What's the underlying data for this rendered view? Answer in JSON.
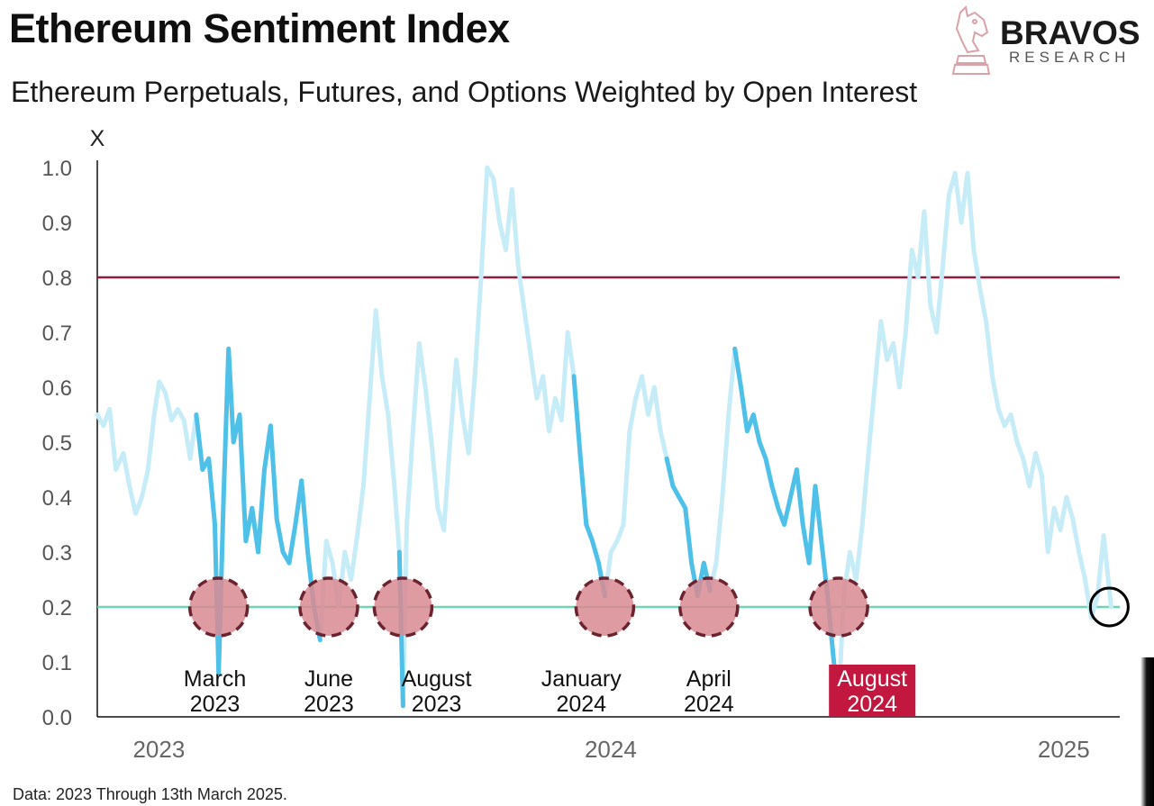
{
  "header": {
    "title": "Ethereum Sentiment Index",
    "subtitle": "Ethereum Perpetuals, Futures, and Options Weighted by Open Interest"
  },
  "logo": {
    "name": "BRAVOS",
    "sub": "RESEARCH"
  },
  "footnote": "Data: 2023 Through 13th March 2025.",
  "chart_data": {
    "type": "line",
    "title": "Ethereum Sentiment Index",
    "subtitle": "Ethereum Perpetuals, Futures, and Options Weighted by Open Interest",
    "ylabel": "X",
    "xlabel": "",
    "ylim": [
      0,
      1.0
    ],
    "y_ticks": [
      "0.0",
      "0.1",
      "0.2",
      "0.3",
      "0.4",
      "0.5",
      "0.6",
      "0.7",
      "0.8",
      "0.9",
      "1.0"
    ],
    "x_ticks": [
      {
        "label": "2023",
        "date": "2023-01-01"
      },
      {
        "label": "2024",
        "date": "2024-01-01"
      },
      {
        "label": "2025",
        "date": "2025-01-01"
      }
    ],
    "xlim": [
      "2022-12-15",
      "2025-03-20"
    ],
    "colors": {
      "series": "#c6ecf8",
      "highlight": "#4fc1e9",
      "upper_line": "#8b1e3f",
      "lower_line": "#6fd6b5",
      "marker_fill": "#d98a92",
      "marker_stroke": "#6b2330",
      "label_badge": "#c2183f"
    },
    "series": [
      {
        "values": [
          [
            "2022-12-15",
            0.55
          ],
          [
            "2022-12-20",
            0.53
          ],
          [
            "2022-12-25",
            0.56
          ],
          [
            "2022-12-30",
            0.45
          ],
          [
            "2023-01-05",
            0.48
          ],
          [
            "2023-01-10",
            0.42
          ],
          [
            "2023-01-15",
            0.37
          ],
          [
            "2023-01-20",
            0.4
          ],
          [
            "2023-01-25",
            0.45
          ],
          [
            "2023-01-30",
            0.55
          ],
          [
            "2023-02-03",
            0.61
          ],
          [
            "2023-02-08",
            0.59
          ],
          [
            "2023-02-13",
            0.54
          ],
          [
            "2023-02-18",
            0.56
          ],
          [
            "2023-02-23",
            0.54
          ],
          [
            "2023-02-28",
            0.47
          ],
          [
            "2023-03-05",
            0.55
          ],
          [
            "2023-03-10",
            0.45
          ],
          [
            "2023-03-15",
            0.47
          ],
          [
            "2023-03-20",
            0.35
          ],
          [
            "2023-03-23",
            0.08
          ],
          [
            "2023-03-27",
            0.4
          ],
          [
            "2023-03-31",
            0.67
          ],
          [
            "2023-04-04",
            0.5
          ],
          [
            "2023-04-09",
            0.55
          ],
          [
            "2023-04-14",
            0.32
          ],
          [
            "2023-04-19",
            0.38
          ],
          [
            "2023-04-24",
            0.3
          ],
          [
            "2023-04-29",
            0.45
          ],
          [
            "2023-05-04",
            0.53
          ],
          [
            "2023-05-09",
            0.36
          ],
          [
            "2023-05-14",
            0.3
          ],
          [
            "2023-05-19",
            0.28
          ],
          [
            "2023-05-24",
            0.35
          ],
          [
            "2023-05-29",
            0.43
          ],
          [
            "2023-06-03",
            0.3
          ],
          [
            "2023-06-08",
            0.2
          ],
          [
            "2023-06-13",
            0.14
          ],
          [
            "2023-06-18",
            0.32
          ],
          [
            "2023-06-23",
            0.28
          ],
          [
            "2023-06-28",
            0.2
          ],
          [
            "2023-07-03",
            0.3
          ],
          [
            "2023-07-08",
            0.25
          ],
          [
            "2023-07-13",
            0.33
          ],
          [
            "2023-07-18",
            0.42
          ],
          [
            "2023-07-23",
            0.58
          ],
          [
            "2023-07-28",
            0.74
          ],
          [
            "2023-08-02",
            0.62
          ],
          [
            "2023-08-07",
            0.55
          ],
          [
            "2023-08-12",
            0.42
          ],
          [
            "2023-08-16",
            0.3
          ],
          [
            "2023-08-19",
            0.02
          ],
          [
            "2023-08-22",
            0.35
          ],
          [
            "2023-08-27",
            0.52
          ],
          [
            "2023-09-01",
            0.68
          ],
          [
            "2023-09-06",
            0.6
          ],
          [
            "2023-09-11",
            0.5
          ],
          [
            "2023-09-16",
            0.38
          ],
          [
            "2023-09-21",
            0.34
          ],
          [
            "2023-09-26",
            0.5
          ],
          [
            "2023-10-01",
            0.65
          ],
          [
            "2023-10-06",
            0.55
          ],
          [
            "2023-10-11",
            0.48
          ],
          [
            "2023-10-16",
            0.62
          ],
          [
            "2023-10-21",
            0.8
          ],
          [
            "2023-10-26",
            1.0
          ],
          [
            "2023-10-31",
            0.98
          ],
          [
            "2023-11-05",
            0.9
          ],
          [
            "2023-11-10",
            0.85
          ],
          [
            "2023-11-15",
            0.96
          ],
          [
            "2023-11-20",
            0.82
          ],
          [
            "2023-11-25",
            0.74
          ],
          [
            "2023-11-30",
            0.66
          ],
          [
            "2023-12-05",
            0.58
          ],
          [
            "2023-12-10",
            0.62
          ],
          [
            "2023-12-15",
            0.52
          ],
          [
            "2023-12-20",
            0.58
          ],
          [
            "2023-12-25",
            0.54
          ],
          [
            "2023-12-30",
            0.7
          ],
          [
            "2024-01-04",
            0.62
          ],
          [
            "2024-01-09",
            0.48
          ],
          [
            "2024-01-14",
            0.35
          ],
          [
            "2024-01-19",
            0.32
          ],
          [
            "2024-01-24",
            0.28
          ],
          [
            "2024-01-29",
            0.22
          ],
          [
            "2024-02-03",
            0.3
          ],
          [
            "2024-02-08",
            0.32
          ],
          [
            "2024-02-13",
            0.35
          ],
          [
            "2024-02-18",
            0.52
          ],
          [
            "2024-02-23",
            0.58
          ],
          [
            "2024-02-28",
            0.62
          ],
          [
            "2024-03-04",
            0.55
          ],
          [
            "2024-03-09",
            0.6
          ],
          [
            "2024-03-14",
            0.52
          ],
          [
            "2024-03-19",
            0.47
          ],
          [
            "2024-03-24",
            0.42
          ],
          [
            "2024-03-29",
            0.4
          ],
          [
            "2024-04-03",
            0.38
          ],
          [
            "2024-04-08",
            0.28
          ],
          [
            "2024-04-13",
            0.22
          ],
          [
            "2024-04-18",
            0.28
          ],
          [
            "2024-04-23",
            0.23
          ],
          [
            "2024-04-28",
            0.28
          ],
          [
            "2024-05-03",
            0.4
          ],
          [
            "2024-05-08",
            0.55
          ],
          [
            "2024-05-13",
            0.67
          ],
          [
            "2024-05-18",
            0.6
          ],
          [
            "2024-05-23",
            0.52
          ],
          [
            "2024-05-28",
            0.55
          ],
          [
            "2024-06-02",
            0.5
          ],
          [
            "2024-06-07",
            0.47
          ],
          [
            "2024-06-12",
            0.42
          ],
          [
            "2024-06-17",
            0.38
          ],
          [
            "2024-06-22",
            0.35
          ],
          [
            "2024-06-27",
            0.4
          ],
          [
            "2024-07-02",
            0.45
          ],
          [
            "2024-07-07",
            0.35
          ],
          [
            "2024-07-12",
            0.28
          ],
          [
            "2024-07-17",
            0.42
          ],
          [
            "2024-07-22",
            0.32
          ],
          [
            "2024-07-27",
            0.22
          ],
          [
            "2024-08-01",
            0.1
          ],
          [
            "2024-08-05",
            0.03
          ],
          [
            "2024-08-09",
            0.22
          ],
          [
            "2024-08-14",
            0.3
          ],
          [
            "2024-08-19",
            0.25
          ],
          [
            "2024-08-24",
            0.35
          ],
          [
            "2024-08-29",
            0.48
          ],
          [
            "2024-09-03",
            0.6
          ],
          [
            "2024-09-08",
            0.72
          ],
          [
            "2024-09-13",
            0.65
          ],
          [
            "2024-09-18",
            0.68
          ],
          [
            "2024-09-23",
            0.6
          ],
          [
            "2024-09-28",
            0.7
          ],
          [
            "2024-10-03",
            0.85
          ],
          [
            "2024-10-08",
            0.8
          ],
          [
            "2024-10-13",
            0.92
          ],
          [
            "2024-10-18",
            0.75
          ],
          [
            "2024-10-23",
            0.7
          ],
          [
            "2024-10-28",
            0.82
          ],
          [
            "2024-11-02",
            0.95
          ],
          [
            "2024-11-07",
            0.99
          ],
          [
            "2024-11-12",
            0.9
          ],
          [
            "2024-11-17",
            0.99
          ],
          [
            "2024-11-22",
            0.85
          ],
          [
            "2024-11-27",
            0.78
          ],
          [
            "2024-12-02",
            0.72
          ],
          [
            "2024-12-07",
            0.62
          ],
          [
            "2024-12-12",
            0.56
          ],
          [
            "2024-12-17",
            0.53
          ],
          [
            "2024-12-22",
            0.55
          ],
          [
            "2024-12-27",
            0.5
          ],
          [
            "2025-01-01",
            0.47
          ],
          [
            "2025-01-06",
            0.42
          ],
          [
            "2025-01-11",
            0.48
          ],
          [
            "2025-01-16",
            0.44
          ],
          [
            "2025-01-21",
            0.3
          ],
          [
            "2025-01-26",
            0.38
          ],
          [
            "2025-01-31",
            0.34
          ],
          [
            "2025-02-05",
            0.4
          ],
          [
            "2025-02-10",
            0.36
          ],
          [
            "2025-02-15",
            0.3
          ],
          [
            "2025-02-20",
            0.25
          ],
          [
            "2025-02-25",
            0.18
          ],
          [
            "2025-03-02",
            0.22
          ],
          [
            "2025-03-07",
            0.33
          ],
          [
            "2025-03-13",
            0.2
          ]
        ]
      }
    ],
    "highlight_ranges": [
      [
        "2023-03-05",
        "2023-06-14"
      ],
      [
        "2023-08-15",
        "2023-08-20"
      ],
      [
        "2024-01-01",
        "2024-01-30"
      ],
      [
        "2024-03-19",
        "2024-04-24"
      ],
      [
        "2024-05-13",
        "2024-08-06"
      ]
    ],
    "reference_lines": [
      {
        "y": 0.8
      },
      {
        "y": 0.2
      }
    ],
    "annotations": [
      {
        "line1": "March",
        "line2": "2023",
        "marker_date": "2023-03-23",
        "label_date": "2023-03-20"
      },
      {
        "line1": "June",
        "line2": "2023",
        "marker_date": "2023-06-20",
        "label_date": "2023-06-20"
      },
      {
        "line1": "August",
        "line2": "2023",
        "marker_date": "2023-08-19",
        "label_date": "2023-09-15"
      },
      {
        "line1": "January",
        "line2": "2024",
        "marker_date": "2024-01-29",
        "label_date": "2024-01-10"
      },
      {
        "line1": "April",
        "line2": "2024",
        "marker_date": "2024-04-22",
        "label_date": "2024-04-22"
      },
      {
        "line1": "August",
        "line2": "2024",
        "marker_date": "2024-08-05",
        "label_date": "2024-09-01",
        "badge": true
      }
    ],
    "end_marker": {
      "date": "2025-03-13",
      "y": 0.2
    },
    "grid": false,
    "legend": "none"
  }
}
